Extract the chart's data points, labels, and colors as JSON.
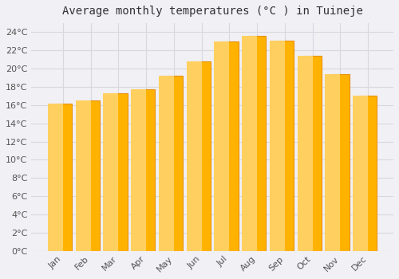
{
  "title": "Average monthly temperatures (°C ) in Tuineje",
  "months": [
    "Jan",
    "Feb",
    "Mar",
    "Apr",
    "May",
    "Jun",
    "Jul",
    "Aug",
    "Sep",
    "Oct",
    "Nov",
    "Dec"
  ],
  "values": [
    16.2,
    16.5,
    17.3,
    17.7,
    19.2,
    20.8,
    23.0,
    23.6,
    23.1,
    21.4,
    19.4,
    17.0
  ],
  "bar_color_top": "#FFB300",
  "bar_color_bottom": "#FFD060",
  "bar_edge_color": "#E8900A",
  "background_color": "#f0f0f5",
  "plot_bg_color": "#f0f0f5",
  "grid_color": "#d8d8e0",
  "ylim": [
    0,
    25
  ],
  "yticks": [
    0,
    2,
    4,
    6,
    8,
    10,
    12,
    14,
    16,
    18,
    20,
    22,
    24
  ],
  "title_fontsize": 10,
  "tick_fontsize": 8,
  "title_color": "#333333",
  "tick_color": "#555555",
  "bar_width": 0.65
}
